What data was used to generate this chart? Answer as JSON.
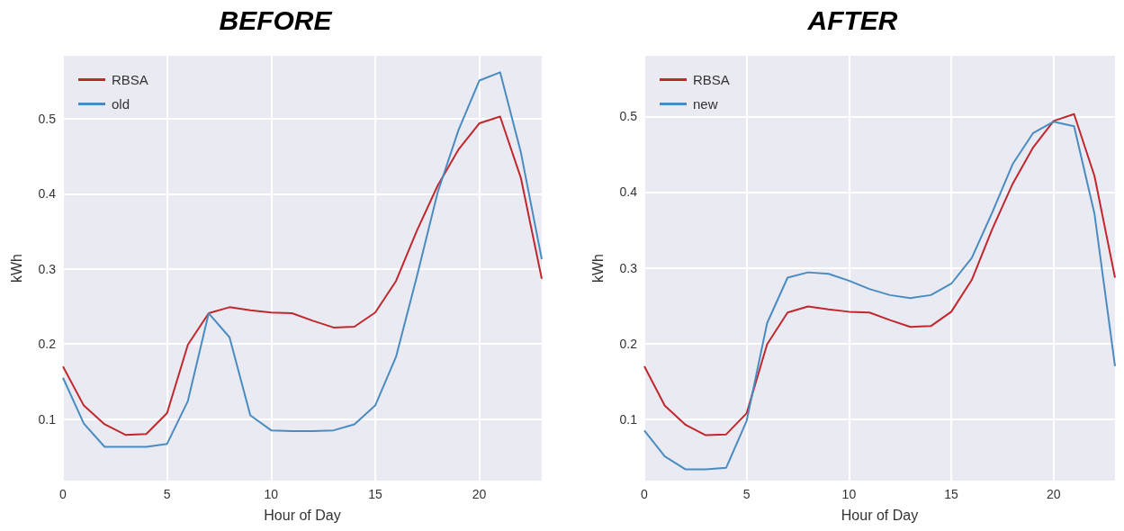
{
  "chart_data": [
    {
      "type": "line",
      "title": "BEFORE",
      "xlabel": "Hour of Day",
      "ylabel": "kWh",
      "x": [
        0,
        1,
        2,
        3,
        4,
        5,
        6,
        7,
        8,
        9,
        10,
        11,
        12,
        13,
        14,
        15,
        16,
        17,
        18,
        19,
        20,
        21,
        22,
        23
      ],
      "xlim": [
        0,
        23
      ],
      "xticks": [
        0,
        5,
        10,
        15,
        20
      ],
      "ylim": [
        0.018,
        0.584
      ],
      "yticks": [
        0.1,
        0.2,
        0.3,
        0.4,
        0.5
      ],
      "grid": true,
      "legend": "top left",
      "marker": "none",
      "line_style": "solid",
      "series": [
        {
          "name": "RBSA",
          "color": "#c0282d",
          "values": [
            0.17,
            0.118,
            0.093,
            0.079,
            0.08,
            0.108,
            0.199,
            0.241,
            0.249,
            0.245,
            0.242,
            0.241,
            0.231,
            0.222,
            0.223,
            0.242,
            0.284,
            0.351,
            0.411,
            0.459,
            0.494,
            0.503,
            0.421,
            0.287
          ]
        },
        {
          "name": "old",
          "color": "#4a8cc1",
          "values": [
            0.155,
            0.094,
            0.063,
            0.063,
            0.063,
            0.067,
            0.124,
            0.241,
            0.209,
            0.105,
            0.085,
            0.084,
            0.084,
            0.085,
            0.093,
            0.118,
            0.183,
            0.29,
            0.402,
            0.485,
            0.551,
            0.562,
            0.455,
            0.313
          ]
        }
      ]
    },
    {
      "type": "line",
      "title": "AFTER",
      "xlabel": "Hour of Day",
      "ylabel": "kWh",
      "x": [
        0,
        1,
        2,
        3,
        4,
        5,
        6,
        7,
        8,
        9,
        10,
        11,
        12,
        13,
        14,
        15,
        16,
        17,
        18,
        19,
        20,
        21,
        22,
        23
      ],
      "xlim": [
        0,
        23
      ],
      "xticks": [
        0,
        5,
        10,
        15,
        20
      ],
      "ylim": [
        0.019,
        0.58
      ],
      "yticks": [
        0.1,
        0.2,
        0.3,
        0.4,
        0.5
      ],
      "grid": true,
      "legend": "top left",
      "marker": "none",
      "line_style": "solid",
      "series": [
        {
          "name": "RBSA",
          "color": "#c0282d",
          "values": [
            0.17,
            0.118,
            0.093,
            0.079,
            0.08,
            0.108,
            0.199,
            0.241,
            0.249,
            0.245,
            0.242,
            0.241,
            0.231,
            0.222,
            0.223,
            0.242,
            0.284,
            0.351,
            0.411,
            0.459,
            0.494,
            0.503,
            0.421,
            0.287
          ]
        },
        {
          "name": "new",
          "color": "#4a8cc1",
          "values": [
            0.085,
            0.051,
            0.034,
            0.034,
            0.036,
            0.098,
            0.227,
            0.287,
            0.294,
            0.292,
            0.283,
            0.272,
            0.264,
            0.26,
            0.264,
            0.279,
            0.313,
            0.373,
            0.437,
            0.478,
            0.493,
            0.487,
            0.371,
            0.17
          ]
        }
      ]
    }
  ]
}
